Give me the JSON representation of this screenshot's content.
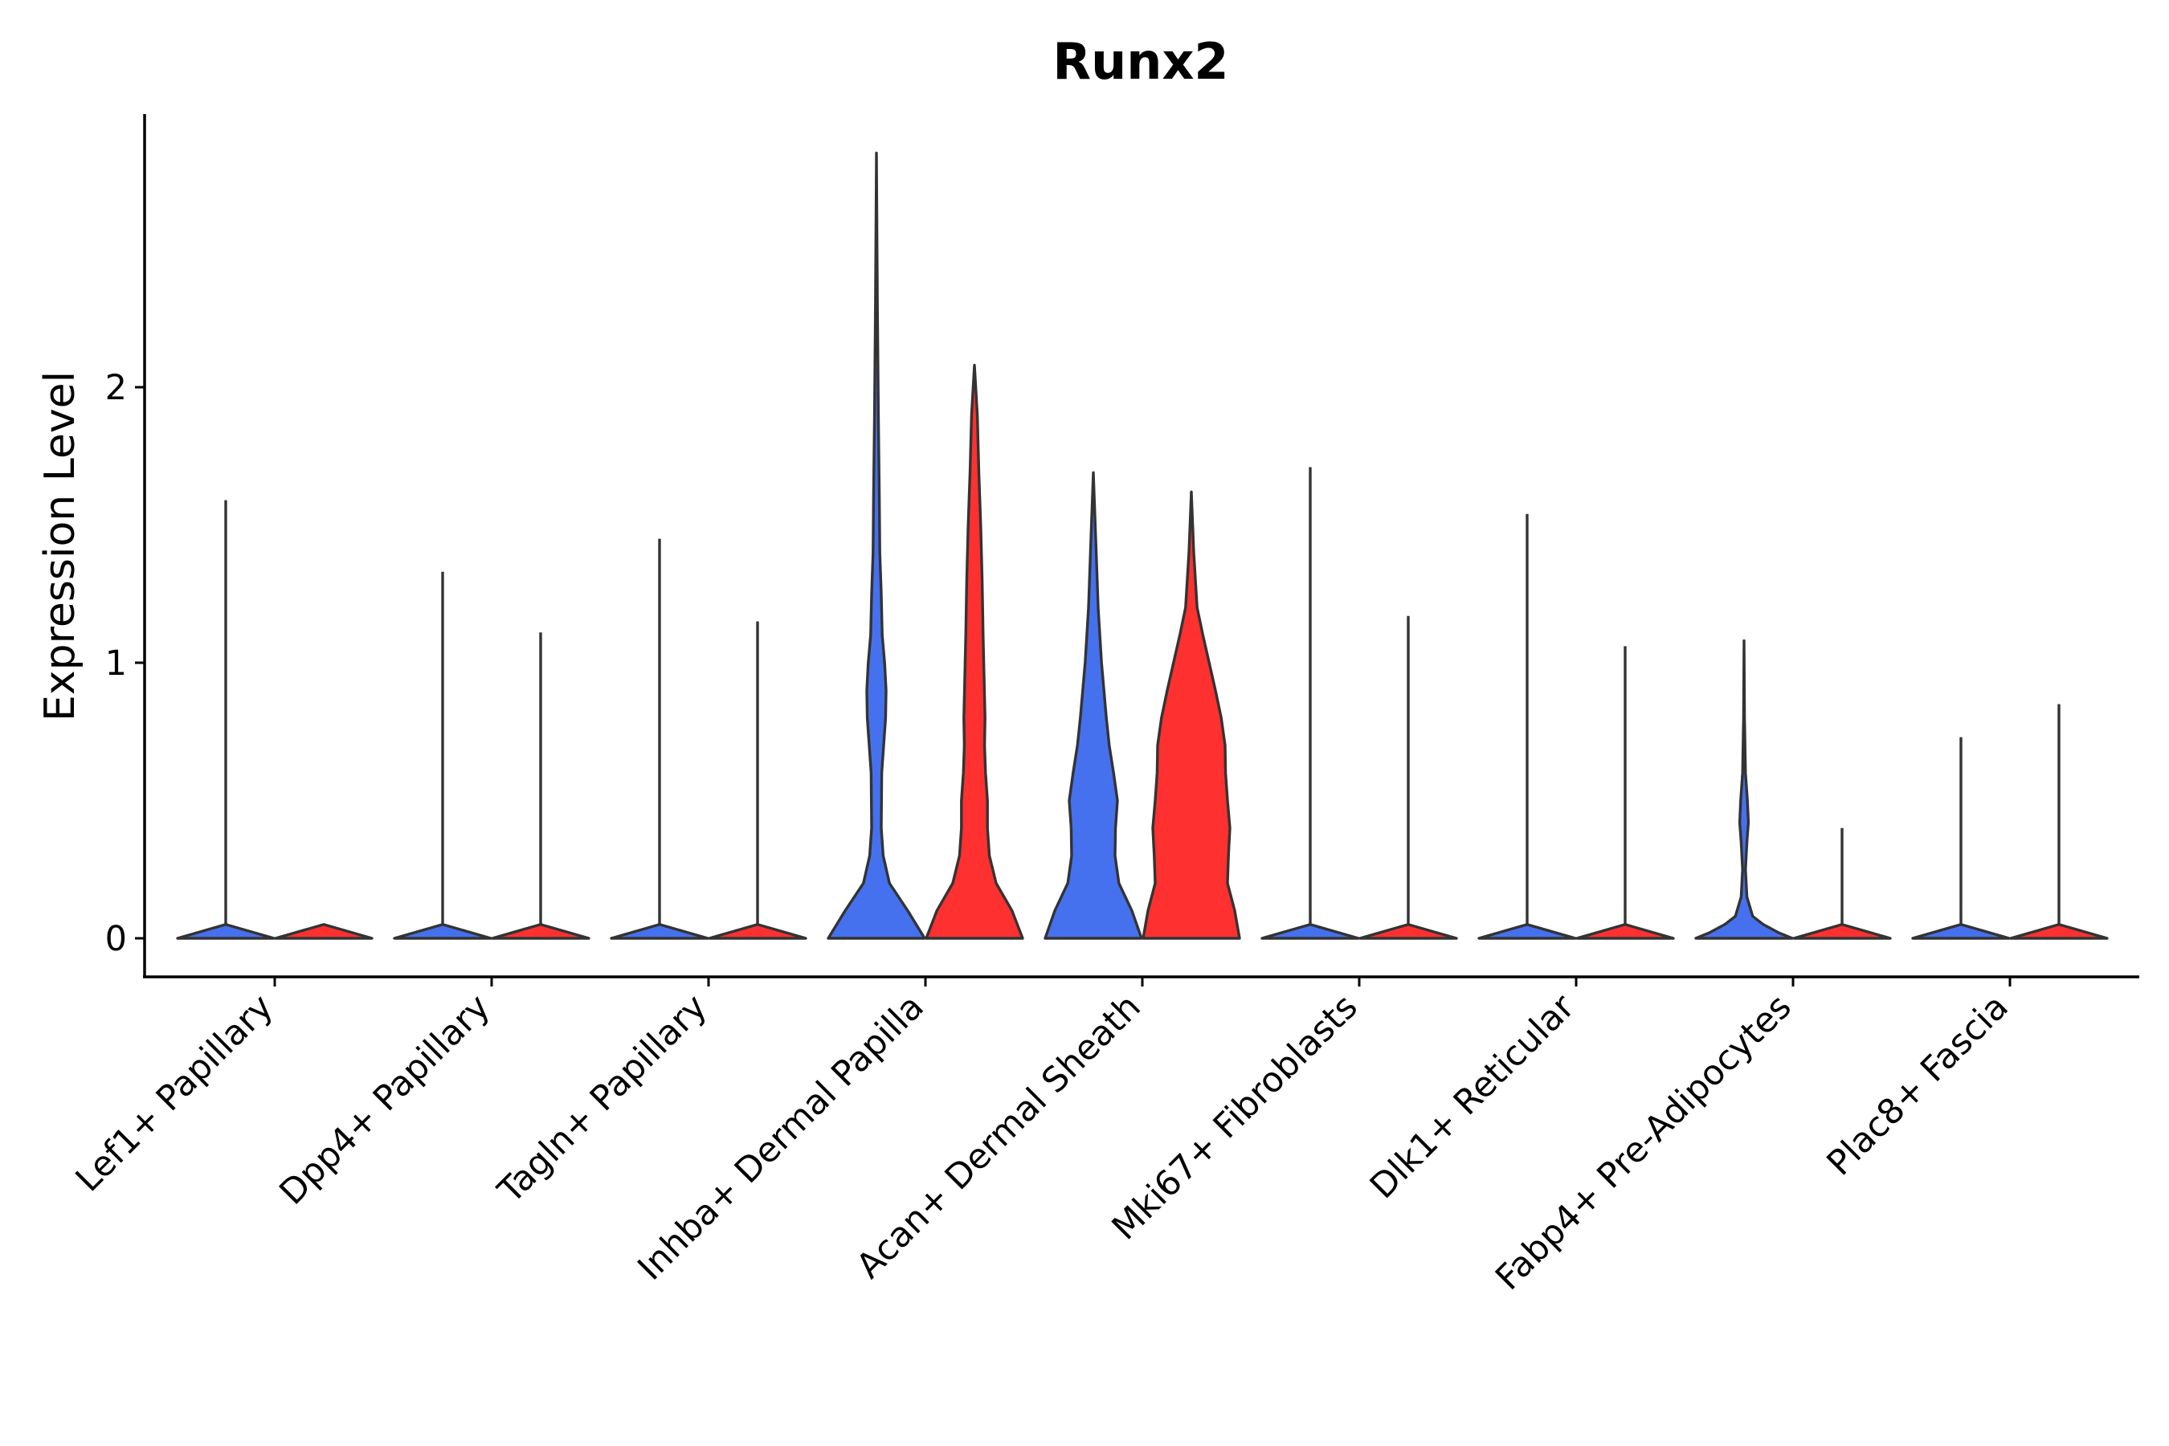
{
  "chart_data": {
    "type": "violin",
    "title": "Runx2",
    "xlabel": "",
    "ylabel": "Expression Level",
    "ylim": [
      -0.14,
      3.0
    ],
    "yticks": [
      0,
      1,
      2
    ],
    "grid": false,
    "legend": "none",
    "colors": {
      "blue": "#4571EE",
      "red": "#FF3030"
    },
    "categories": [
      "Lef1+ Papillary",
      "Dpp4+ Papillary",
      "Tagln+ Papillary",
      "Inhba+ Dermal Papilla",
      "Acan+ Dermal Sheath",
      "Mki67+ Fibroblasts",
      "Dlk1+ Reticular",
      "Fabp4+ Pre-Adipocytes",
      "Plac8+ Fascia"
    ],
    "violins": [
      {
        "category_index": 0,
        "group": "blue",
        "max": 1.59,
        "density": [
          [
            0,
            1
          ],
          [
            0.05,
            0
          ]
        ]
      },
      {
        "category_index": 0,
        "group": "red",
        "max": 0,
        "density": [
          [
            0,
            1
          ],
          [
            0.05,
            0
          ]
        ]
      },
      {
        "category_index": 1,
        "group": "blue",
        "max": 1.33,
        "density": [
          [
            0,
            1
          ],
          [
            0.05,
            0
          ]
        ]
      },
      {
        "category_index": 1,
        "group": "red",
        "max": 1.11,
        "density": [
          [
            0,
            1
          ],
          [
            0.05,
            0
          ]
        ]
      },
      {
        "category_index": 2,
        "group": "blue",
        "max": 1.45,
        "density": [
          [
            0,
            1
          ],
          [
            0.05,
            0
          ]
        ]
      },
      {
        "category_index": 2,
        "group": "red",
        "max": 1.15,
        "density": [
          [
            0,
            1
          ],
          [
            0.05,
            0
          ]
        ]
      },
      {
        "category_index": 3,
        "group": "blue",
        "max": 2.85,
        "density": [
          [
            0,
            1
          ],
          [
            0.1,
            0.65
          ],
          [
            0.2,
            0.27
          ],
          [
            0.3,
            0.14
          ],
          [
            0.4,
            0.1
          ],
          [
            0.6,
            0.11
          ],
          [
            0.8,
            0.19
          ],
          [
            0.9,
            0.2
          ],
          [
            1.0,
            0.17
          ],
          [
            1.1,
            0.12
          ],
          [
            1.25,
            0.1
          ],
          [
            1.4,
            0.07
          ],
          [
            1.6,
            0.06
          ],
          [
            1.9,
            0.04
          ],
          [
            2.3,
            0.02
          ],
          [
            2.85,
            0
          ]
        ]
      },
      {
        "category_index": 3,
        "group": "red",
        "max": 2.08,
        "density": [
          [
            0,
            1
          ],
          [
            0.1,
            0.78
          ],
          [
            0.2,
            0.45
          ],
          [
            0.3,
            0.31
          ],
          [
            0.4,
            0.27
          ],
          [
            0.5,
            0.27
          ],
          [
            0.6,
            0.23
          ],
          [
            0.7,
            0.21
          ],
          [
            0.8,
            0.22
          ],
          [
            0.95,
            0.2
          ],
          [
            1.1,
            0.18
          ],
          [
            1.3,
            0.16
          ],
          [
            1.5,
            0.13
          ],
          [
            1.7,
            0.09
          ],
          [
            1.9,
            0.06
          ],
          [
            2.08,
            0
          ]
        ]
      },
      {
        "category_index": 4,
        "group": "blue",
        "max": 1.69,
        "density": [
          [
            0,
            1
          ],
          [
            0.1,
            0.8
          ],
          [
            0.2,
            0.53
          ],
          [
            0.3,
            0.45
          ],
          [
            0.4,
            0.46
          ],
          [
            0.5,
            0.5
          ],
          [
            0.6,
            0.42
          ],
          [
            0.7,
            0.33
          ],
          [
            0.8,
            0.27
          ],
          [
            1.0,
            0.17
          ],
          [
            1.2,
            0.1
          ],
          [
            1.4,
            0.06
          ],
          [
            1.69,
            0
          ]
        ]
      },
      {
        "category_index": 4,
        "group": "red",
        "max": 1.62,
        "density": [
          [
            0,
            1
          ],
          [
            0.1,
            0.9
          ],
          [
            0.2,
            0.75
          ],
          [
            0.3,
            0.77
          ],
          [
            0.4,
            0.8
          ],
          [
            0.5,
            0.75
          ],
          [
            0.6,
            0.71
          ],
          [
            0.7,
            0.7
          ],
          [
            0.8,
            0.62
          ],
          [
            0.9,
            0.5
          ],
          [
            1.0,
            0.37
          ],
          [
            1.1,
            0.24
          ],
          [
            1.2,
            0.12
          ],
          [
            1.4,
            0.05
          ],
          [
            1.62,
            0
          ]
        ]
      },
      {
        "category_index": 5,
        "group": "blue",
        "max": 1.71,
        "density": [
          [
            0,
            1
          ],
          [
            0.05,
            0
          ]
        ]
      },
      {
        "category_index": 5,
        "group": "red",
        "max": 1.17,
        "density": [
          [
            0,
            1
          ],
          [
            0.05,
            0
          ]
        ]
      },
      {
        "category_index": 6,
        "group": "blue",
        "max": 1.54,
        "density": [
          [
            0,
            1
          ],
          [
            0.05,
            0
          ]
        ]
      },
      {
        "category_index": 6,
        "group": "red",
        "max": 1.06,
        "density": [
          [
            0,
            1
          ],
          [
            0.05,
            0
          ]
        ]
      },
      {
        "category_index": 7,
        "group": "blue",
        "max": 1.08,
        "density": [
          [
            0,
            1
          ],
          [
            0.02,
            0.72
          ],
          [
            0.05,
            0.4
          ],
          [
            0.08,
            0.18
          ],
          [
            0.15,
            0.06
          ],
          [
            0.25,
            0.03
          ],
          [
            0.35,
            0.06
          ],
          [
            0.42,
            0.09
          ],
          [
            0.5,
            0.07
          ],
          [
            0.6,
            0.03
          ],
          [
            0.8,
            0.01
          ],
          [
            1.08,
            0
          ]
        ]
      },
      {
        "category_index": 7,
        "group": "red",
        "max": 0.4,
        "density": [
          [
            0,
            1
          ],
          [
            0.05,
            0
          ]
        ]
      },
      {
        "category_index": 8,
        "group": "blue",
        "max": 0.73,
        "density": [
          [
            0,
            1
          ],
          [
            0.05,
            0
          ]
        ]
      },
      {
        "category_index": 8,
        "group": "red",
        "max": 0.85,
        "density": [
          [
            0,
            1
          ],
          [
            0.05,
            0
          ]
        ]
      }
    ]
  }
}
